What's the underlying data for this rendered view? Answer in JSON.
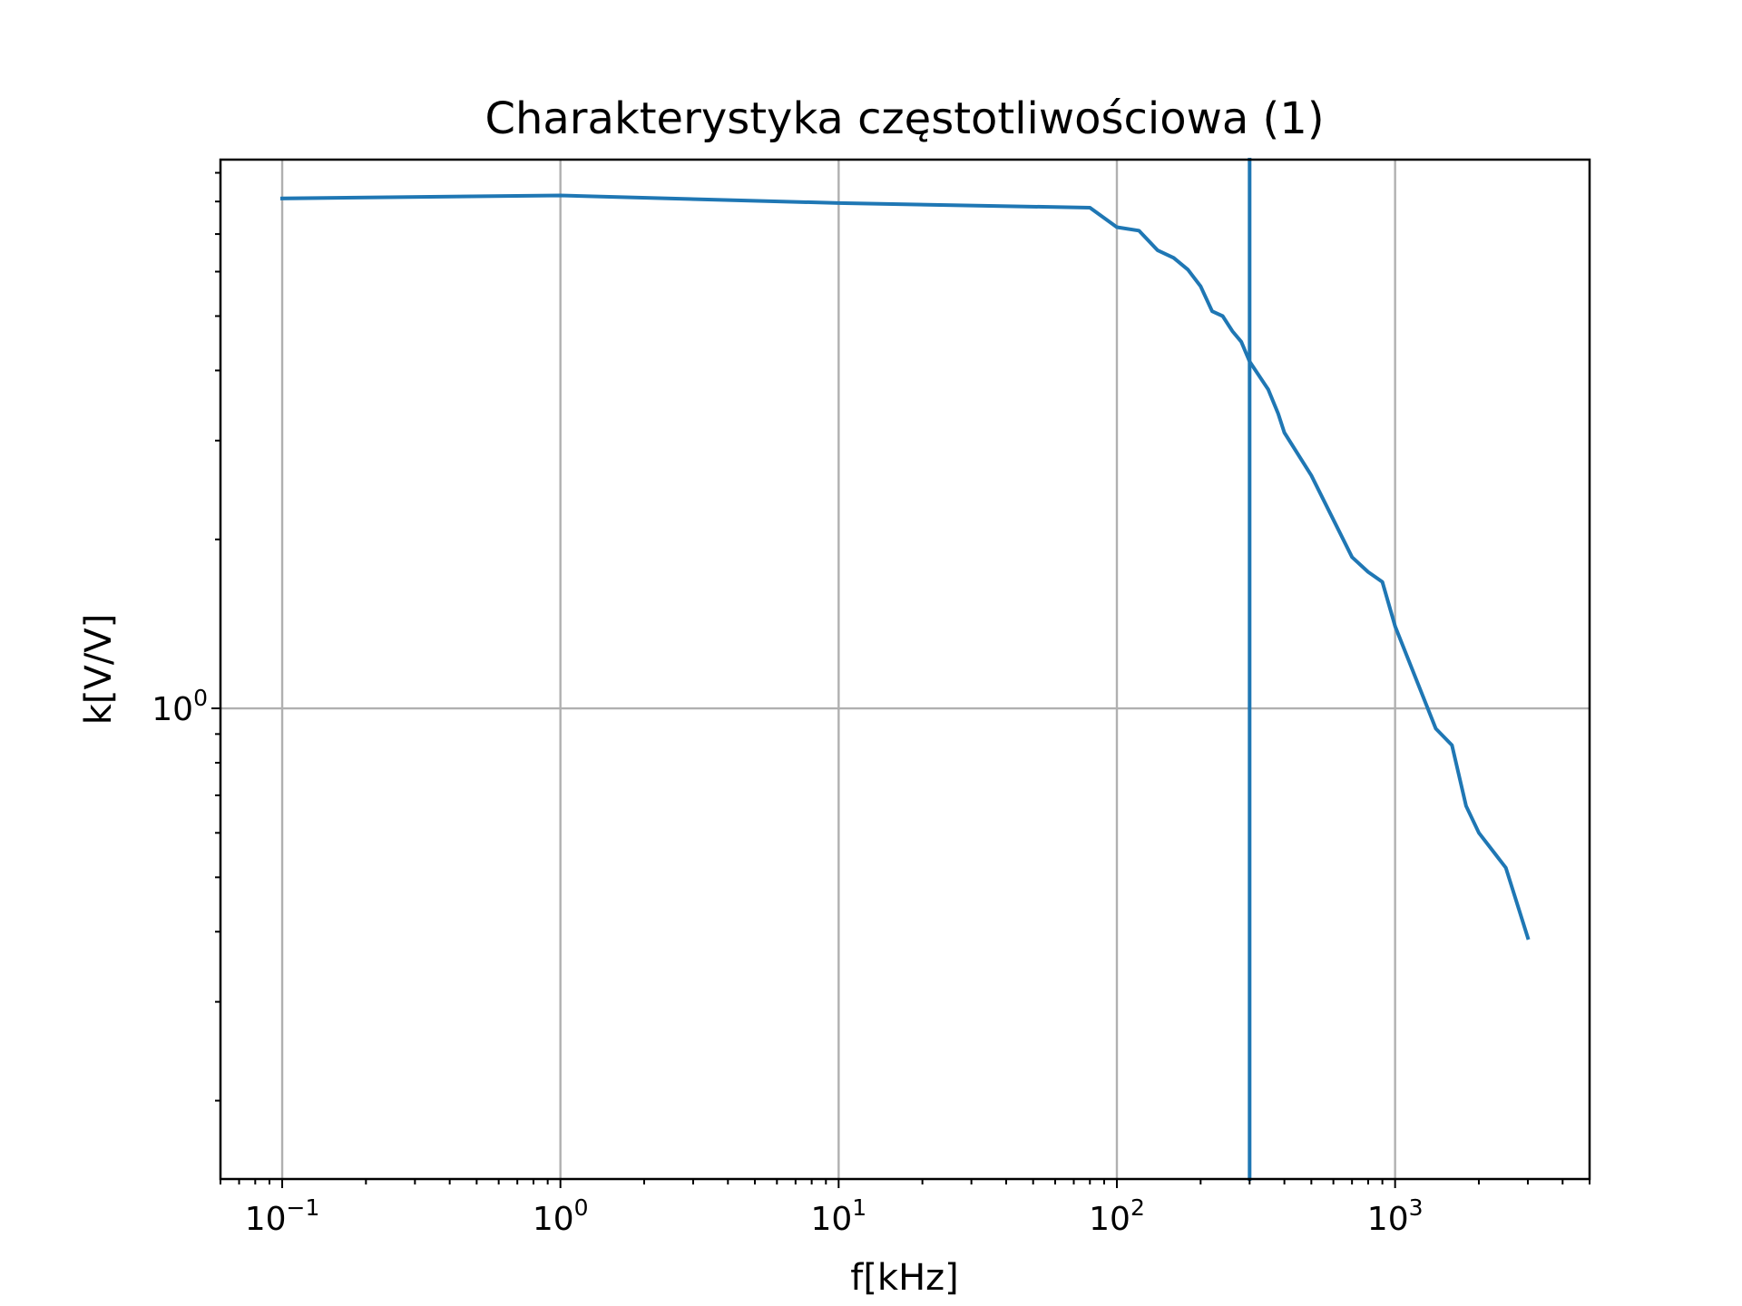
{
  "chart_data": {
    "type": "line",
    "title": "Charakterystyka częstotliwościowa (1)",
    "xlabel": "f[kHz]",
    "ylabel": "k[V/V]",
    "xscale": "log",
    "yscale": "log",
    "xlim": [
      0.06,
      5000
    ],
    "ylim": [
      0.145,
      9.5
    ],
    "grid": true,
    "x_ticks": [
      {
        "value": 0.1,
        "base": "10",
        "exp": "−1"
      },
      {
        "value": 1,
        "base": "10",
        "exp": "0"
      },
      {
        "value": 10,
        "base": "10",
        "exp": "1"
      },
      {
        "value": 100,
        "base": "10",
        "exp": "2"
      },
      {
        "value": 1000,
        "base": "10",
        "exp": "3"
      }
    ],
    "y_ticks": [
      {
        "value": 1,
        "base": "10",
        "exp": "0"
      }
    ],
    "series": [
      {
        "color": "#1f77b4",
        "x": [
          0.1,
          1,
          10,
          80,
          100,
          120,
          140,
          160,
          180,
          200,
          220,
          240,
          260,
          280,
          300,
          350,
          380,
          400,
          500,
          700,
          800,
          900,
          1000,
          1400,
          1600,
          1800,
          2000,
          2500,
          3000
        ],
        "y": [
          8.1,
          8.2,
          7.95,
          7.8,
          7.2,
          7.1,
          6.55,
          6.35,
          6.05,
          5.65,
          5.1,
          5.0,
          4.7,
          4.5,
          4.15,
          3.7,
          3.35,
          3.1,
          2.6,
          1.86,
          1.75,
          1.68,
          1.4,
          0.92,
          0.86,
          0.67,
          0.6,
          0.52,
          0.39
        ]
      }
    ],
    "vline": {
      "x": 300,
      "color": "#1f77b4"
    }
  }
}
